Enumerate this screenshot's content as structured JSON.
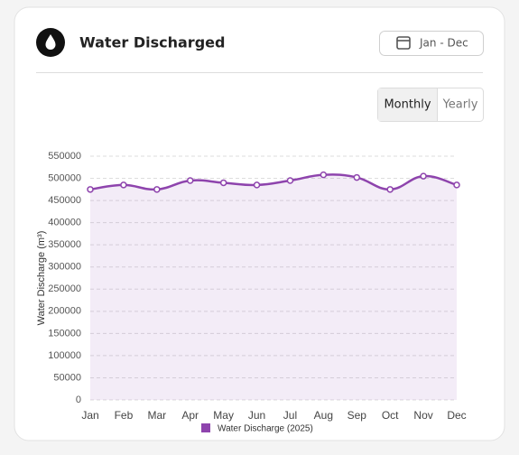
{
  "header": {
    "title": "Water Discharged",
    "date_range": "Jan - Dec"
  },
  "toggle": {
    "options": [
      "Monthly",
      "Yearly"
    ],
    "selected": "Monthly"
  },
  "chart_data": {
    "type": "line",
    "y_label": "Water Discharge (m³)",
    "categories": [
      "Jan",
      "Feb",
      "Mar",
      "Apr",
      "May",
      "Jun",
      "Jul",
      "Aug",
      "Sep",
      "Oct",
      "Nov",
      "Dec"
    ],
    "series": [
      {
        "name": "Water Discharge (2025)",
        "color": "#8e44ad",
        "values": [
          475000,
          485000,
          475000,
          495000,
          490000,
          485000,
          495000,
          508000,
          502000,
          475000,
          505000,
          485000
        ]
      }
    ],
    "ylim": [
      0,
      550000
    ],
    "yticks": [
      0,
      50000,
      100000,
      150000,
      200000,
      250000,
      300000,
      350000,
      400000,
      450000,
      500000,
      550000
    ],
    "grid": true,
    "area": true,
    "legend": "bottom"
  }
}
